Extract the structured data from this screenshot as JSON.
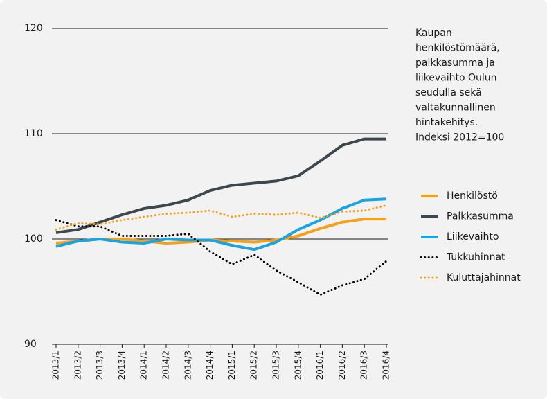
{
  "chart_data": {
    "type": "line",
    "annotation": [
      "Kaupan",
      "henkilöstömäärä,",
      "palkkasumma ja",
      "liikevaihto Oulun",
      "seudulla sekä",
      "valtakunnallinen",
      "hintakehitys.",
      "Indeksi 2012=100"
    ],
    "categories": [
      "2013/1",
      "2013/2",
      "2013/3",
      "2013/4",
      "2014/1",
      "2014/2",
      "2014/3",
      "2014/4",
      "2015/1",
      "2015/2",
      "2015/3",
      "2015/4",
      "2016/1",
      "2016/2",
      "2016/3",
      "2016/4"
    ],
    "series": [
      {
        "name": "Henkilöstö",
        "color": "#f5a01a",
        "style": "solid",
        "values": [
          99.6,
          99.8,
          100.0,
          100.0,
          99.8,
          99.6,
          99.7,
          99.9,
          99.8,
          99.7,
          99.9,
          100.3,
          101.0,
          101.6,
          101.9,
          101.9
        ]
      },
      {
        "name": "Palkkasumma",
        "color": "#3c484d",
        "style": "solid",
        "values": [
          100.6,
          100.9,
          101.6,
          102.3,
          102.9,
          103.2,
          103.7,
          104.6,
          105.1,
          105.3,
          105.5,
          106.0,
          107.4,
          108.9,
          109.5,
          109.5
        ]
      },
      {
        "name": "Liikevaihto",
        "color": "#1ba3e0",
        "style": "solid",
        "values": [
          99.3,
          99.8,
          100.0,
          99.7,
          99.6,
          100.0,
          99.9,
          99.9,
          99.4,
          99.0,
          99.7,
          100.9,
          101.8,
          102.9,
          103.7,
          103.8
        ]
      },
      {
        "name": "Tukkuhinnat",
        "color": "#000000",
        "style": "dotted",
        "values": [
          101.8,
          101.2,
          101.2,
          100.3,
          100.3,
          100.3,
          100.5,
          98.8,
          97.6,
          98.5,
          97.0,
          95.9,
          94.7,
          95.6,
          96.2,
          97.9
        ]
      },
      {
        "name": "Kuluttajahinnat",
        "color": "#f5a01a",
        "style": "dotted",
        "values": [
          100.9,
          101.5,
          101.4,
          101.8,
          102.1,
          102.4,
          102.5,
          102.7,
          102.1,
          102.4,
          102.3,
          102.5,
          102.0,
          102.6,
          102.7,
          103.2
        ]
      }
    ],
    "ylim": [
      90,
      120
    ],
    "yticks": [
      90,
      100,
      110,
      120
    ],
    "grid": true
  }
}
